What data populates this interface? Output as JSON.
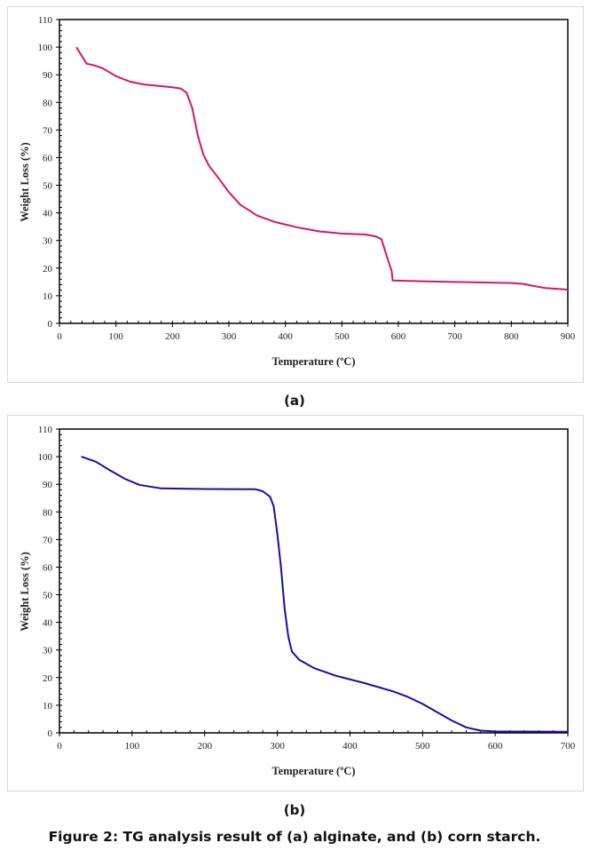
{
  "caption": "Figure 2: TG analysis result of (a) alginate, and (b) corn starch.",
  "chart_data": [
    {
      "type": "line",
      "panel_label": "(a)",
      "title": "",
      "xlabel": "Temperature (ºC)",
      "ylabel": "Weight Loss (%)",
      "xlim": [
        0,
        900
      ],
      "ylim": [
        0,
        110
      ],
      "xticks": [
        0,
        100,
        200,
        300,
        400,
        500,
        600,
        700,
        800,
        900
      ],
      "yticks": [
        0,
        10,
        20,
        30,
        40,
        50,
        60,
        70,
        80,
        90,
        100,
        110
      ],
      "grid": false,
      "series": [
        {
          "name": "alginate",
          "color": "#d6156a",
          "x": [
            30,
            48,
            60,
            75,
            100,
            125,
            150,
            200,
            215,
            225,
            235,
            245,
            255,
            265,
            280,
            300,
            320,
            350,
            380,
            420,
            460,
            500,
            540,
            560,
            570,
            580,
            588,
            590,
            650,
            700,
            800,
            820,
            840,
            860,
            900
          ],
          "y": [
            100,
            94,
            93.5,
            92.5,
            89.5,
            87.5,
            86.5,
            85.5,
            85,
            83.5,
            78,
            68,
            61,
            57,
            53,
            47.5,
            43,
            39,
            36.8,
            34.8,
            33.3,
            32.5,
            32.2,
            31.5,
            30.5,
            24,
            19,
            15.5,
            15.2,
            15,
            14.6,
            14.3,
            13.5,
            12.8,
            12.2
          ]
        }
      ]
    },
    {
      "type": "line",
      "panel_label": "(b)",
      "title": "",
      "xlabel": "Temperature (ºC)",
      "ylabel": "Weight Loss (%)",
      "xlim": [
        0,
        700
      ],
      "ylim": [
        0,
        110
      ],
      "xticks": [
        0,
        100,
        200,
        300,
        400,
        500,
        600,
        700
      ],
      "yticks": [
        0,
        10,
        20,
        30,
        40,
        50,
        60,
        70,
        80,
        90,
        100,
        110
      ],
      "grid": false,
      "series": [
        {
          "name": "corn starch",
          "color": "#1010a8",
          "x": [
            30,
            50,
            70,
            90,
            110,
            140,
            200,
            270,
            280,
            290,
            295,
            300,
            305,
            310,
            315,
            320,
            330,
            350,
            380,
            420,
            460,
            480,
            500,
            520,
            540,
            560,
            580,
            600,
            700
          ],
          "y": [
            100,
            98.2,
            95,
            92,
            89.8,
            88.5,
            88.3,
            88.2,
            87.5,
            85.5,
            82,
            72,
            60,
            45,
            35,
            29.5,
            26.5,
            23.5,
            20.7,
            18,
            15,
            13,
            10.5,
            7.5,
            4.5,
            2,
            0.8,
            0.5,
            0.4
          ]
        }
      ]
    }
  ]
}
